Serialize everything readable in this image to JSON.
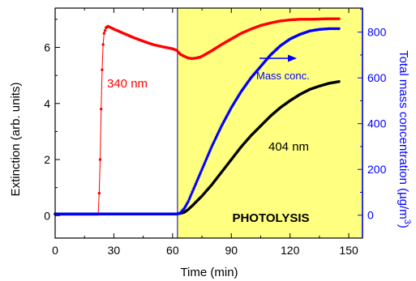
{
  "chart_data": {
    "type": "scatter",
    "xlabel": "Time (min)",
    "ylabel": "Extinction (arb. units)",
    "y2label": "Total mass concentration (µg/m",
    "y2label_sup": "3",
    "y2label_close": ")",
    "xlim": [
      0,
      157
    ],
    "ylim": [
      -0.8,
      7.4
    ],
    "y2lim": [
      -100,
      905
    ],
    "x_ticks": [
      0,
      30,
      60,
      90,
      120,
      150
    ],
    "x_tick_labels": [
      "0",
      "30",
      "60",
      "90",
      "120",
      "150"
    ],
    "y_ticks": [
      0,
      2,
      4,
      6
    ],
    "y_tick_labels": [
      "0",
      "2",
      "4",
      "6"
    ],
    "y2_ticks": [
      0,
      200,
      400,
      600,
      800
    ],
    "y2_tick_labels": [
      "0",
      "200",
      "400",
      "600",
      "800"
    ],
    "shaded_region": {
      "x_start": 62.5,
      "x_end": 157,
      "color": "#ffff80",
      "label": "PHOTOLYSIS"
    },
    "series": [
      {
        "label": "340 nm",
        "axis": "left",
        "color": "#ff0000",
        "x": [
          0,
          10,
          20,
          22,
          22.5,
          23,
          23.5,
          24,
          24.5,
          25,
          26,
          27,
          28,
          30,
          35,
          40,
          45,
          50,
          55,
          60,
          62,
          64,
          66,
          68,
          70,
          72,
          74,
          76,
          80,
          85,
          90,
          95,
          100,
          105,
          110,
          115,
          120,
          125,
          130,
          135,
          140,
          145
        ],
        "y": [
          0.05,
          0.05,
          0.05,
          0.05,
          0.8,
          2.0,
          3.8,
          5.2,
          6.1,
          6.5,
          6.7,
          6.75,
          6.72,
          6.65,
          6.5,
          6.35,
          6.22,
          6.1,
          6.02,
          5.95,
          5.9,
          5.75,
          5.68,
          5.62,
          5.6,
          5.62,
          5.65,
          5.72,
          5.88,
          6.1,
          6.3,
          6.5,
          6.65,
          6.78,
          6.87,
          6.94,
          6.98,
          7.0,
          7.0,
          7.01,
          7.02,
          7.02
        ]
      },
      {
        "label": "404 nm",
        "axis": "left",
        "color": "#000000",
        "x": [
          0,
          10,
          20,
          30,
          40,
          50,
          60,
          62,
          64,
          66,
          68,
          70,
          75,
          80,
          85,
          90,
          95,
          100,
          105,
          110,
          115,
          120,
          125,
          130,
          135,
          140,
          145
        ],
        "y": [
          0.06,
          0.06,
          0.06,
          0.06,
          0.06,
          0.06,
          0.06,
          0.06,
          0.08,
          0.12,
          0.22,
          0.35,
          0.7,
          1.1,
          1.55,
          2.0,
          2.45,
          2.85,
          3.2,
          3.55,
          3.85,
          4.1,
          4.32,
          4.5,
          4.62,
          4.72,
          4.78
        ]
      },
      {
        "label": "Mass conc.",
        "axis": "right",
        "color": "#0000ff",
        "x": [
          0,
          10,
          20,
          30,
          40,
          50,
          60,
          62,
          64,
          66,
          68,
          70,
          75,
          80,
          85,
          90,
          95,
          100,
          105,
          110,
          115,
          120,
          125,
          130,
          135,
          140,
          145
        ],
        "y": [
          5,
          5,
          5,
          5,
          5,
          5,
          5,
          5,
          10,
          30,
          60,
          100,
          200,
          300,
          390,
          470,
          540,
          600,
          650,
          700,
          740,
          770,
          790,
          805,
          812,
          815,
          815
        ]
      }
    ],
    "annotations": [
      {
        "text": "340 nm",
        "color": "#ff0000"
      },
      {
        "text": "404 nm",
        "color": "#000000"
      },
      {
        "text": "Mass conc.",
        "color": "#0000ff"
      },
      {
        "text": "PHOTOLYSIS",
        "color": "#000000"
      }
    ]
  }
}
